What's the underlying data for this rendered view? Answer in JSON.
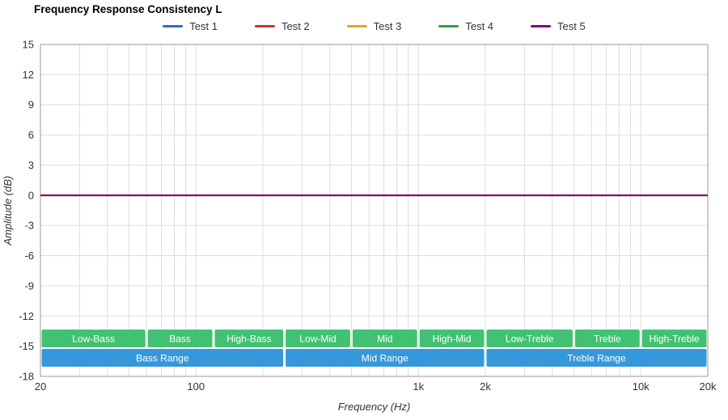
{
  "chart_data": {
    "type": "line",
    "title": "Frequency Response Consistency L",
    "xlabel": "Frequency (Hz)",
    "ylabel": "Amplitude (dB)",
    "x_scale": "log",
    "xlim": [
      20,
      20000
    ],
    "ylim": [
      -18,
      15
    ],
    "grid": true,
    "legend_position": "top",
    "y_ticks": [
      15,
      12,
      9,
      6,
      3,
      0,
      -3,
      -6,
      -9,
      -12,
      -15,
      -18
    ],
    "x_ticks": [
      [
        20,
        "20"
      ],
      [
        100,
        "100"
      ],
      [
        1000,
        "1k"
      ],
      [
        2000,
        "2k"
      ],
      [
        10000,
        "10k"
      ],
      [
        20000,
        "20k"
      ]
    ],
    "series": [
      {
        "name": "Test 1",
        "color": "#3366cc",
        "x": [
          20,
          20000
        ],
        "y": [
          0,
          0
        ]
      },
      {
        "name": "Test 2",
        "color": "#c0392b",
        "x": [
          20,
          20000
        ],
        "y": [
          0,
          0
        ]
      },
      {
        "name": "Test 3",
        "color": "#e2a329",
        "x": [
          20,
          20000
        ],
        "y": [
          0,
          0
        ]
      },
      {
        "name": "Test 4",
        "color": "#2d9e46",
        "x": [
          20,
          20000
        ],
        "y": [
          0,
          0
        ]
      },
      {
        "name": "Test 5",
        "color": "#800080",
        "x": [
          20,
          20000
        ],
        "y": [
          0,
          0
        ]
      }
    ],
    "bands": {
      "sub_color": "#42c173",
      "main_color": "#3598db",
      "sub": [
        {
          "label": "Low-Bass",
          "from": 20,
          "to": 60
        },
        {
          "label": "Bass",
          "from": 60,
          "to": 120
        },
        {
          "label": "High-Bass",
          "from": 120,
          "to": 250
        },
        {
          "label": "Low-Mid",
          "from": 250,
          "to": 500
        },
        {
          "label": "Mid",
          "from": 500,
          "to": 1000
        },
        {
          "label": "High-Mid",
          "from": 1000,
          "to": 2000
        },
        {
          "label": "Low-Treble",
          "from": 2000,
          "to": 5000
        },
        {
          "label": "Treble",
          "from": 5000,
          "to": 10000
        },
        {
          "label": "High-Treble",
          "from": 10000,
          "to": 20000
        }
      ],
      "main": [
        {
          "label": "Bass Range",
          "from": 20,
          "to": 250
        },
        {
          "label": "Mid Range",
          "from": 250,
          "to": 2000
        },
        {
          "label": "Treble Range",
          "from": 2000,
          "to": 20000
        }
      ]
    }
  },
  "colors": {
    "grid": "#dddddd",
    "border": "#999999",
    "tick_text": "#333333",
    "band_text": "#ffffff"
  }
}
